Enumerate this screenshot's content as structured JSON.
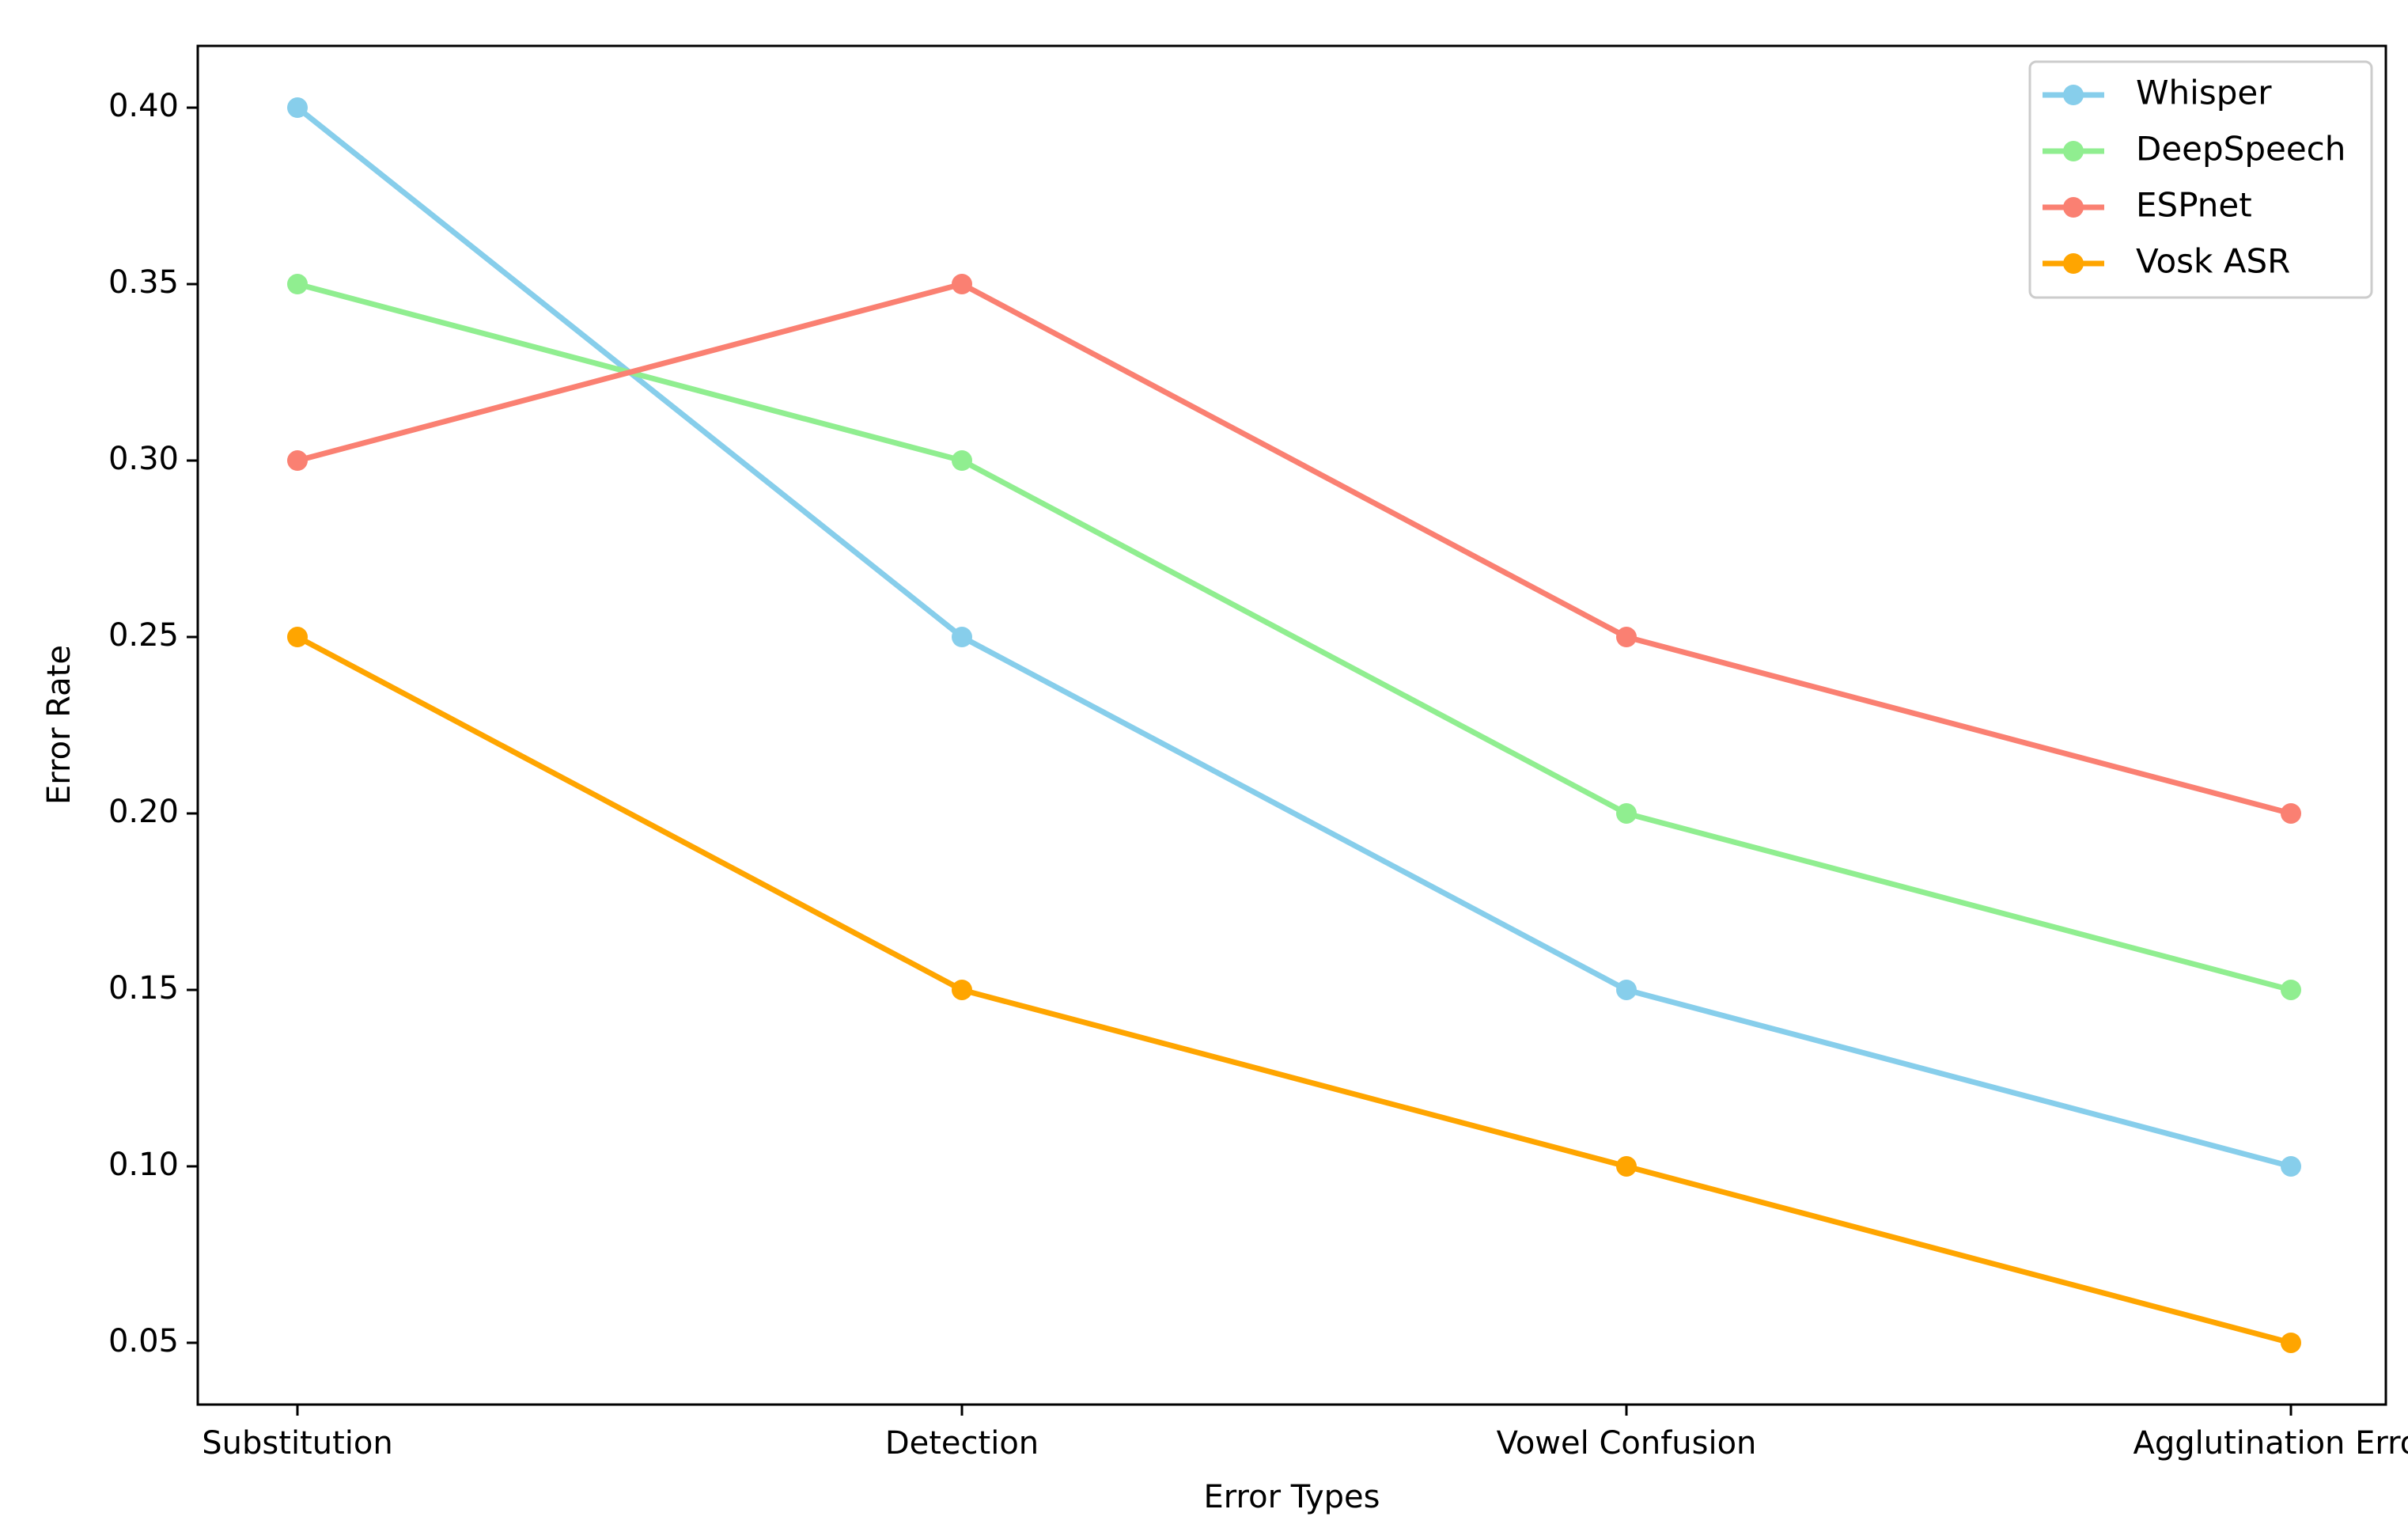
{
  "chart_data": {
    "type": "line",
    "categories": [
      "Substitution",
      "Detection",
      "Vowel Confusion",
      "Agglutination Errors"
    ],
    "series": [
      {
        "name": "Whisper",
        "color": "#87ceeb",
        "values": [
          0.4,
          0.25,
          0.15,
          0.1
        ]
      },
      {
        "name": "DeepSpeech",
        "color": "#90ee90",
        "values": [
          0.35,
          0.3,
          0.2,
          0.15
        ]
      },
      {
        "name": "ESPnet",
        "color": "#fa8072",
        "values": [
          0.3,
          0.35,
          0.25,
          0.2
        ]
      },
      {
        "name": "Vosk ASR",
        "color": "#ffa500",
        "values": [
          0.25,
          0.15,
          0.1,
          0.05
        ]
      }
    ],
    "title": "",
    "xlabel": "Error Types",
    "ylabel": "Error Rate",
    "ylim": [
      0.0325,
      0.4175
    ],
    "yticks": [
      "0.05",
      "0.10",
      "0.15",
      "0.20",
      "0.25",
      "0.30",
      "0.35",
      "0.40"
    ],
    "grid": false,
    "legend": "top-right",
    "marker": "circle"
  }
}
